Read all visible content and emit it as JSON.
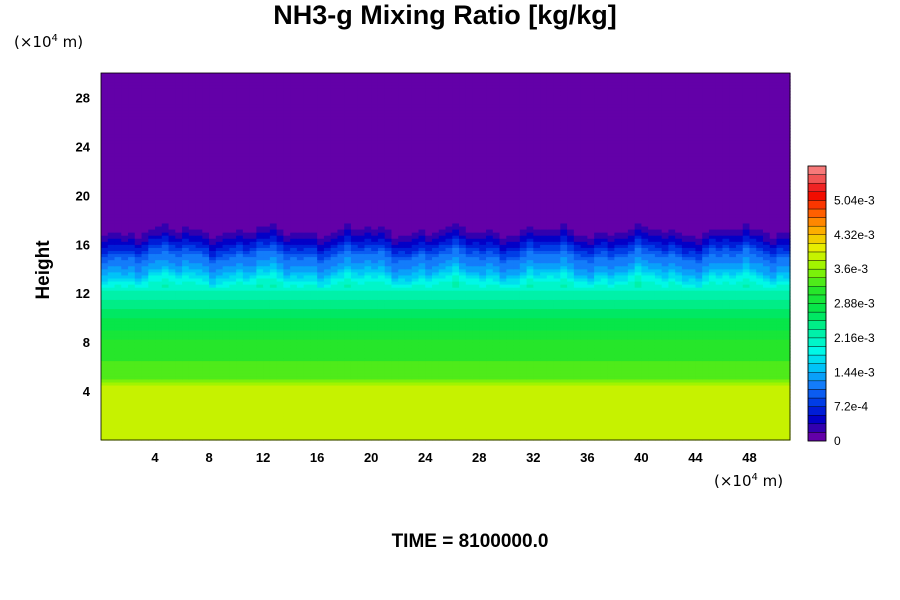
{
  "chart_data": {
    "type": "heatmap",
    "title": "NH3-g Mixing Ratio [kg/kg]",
    "ylabel": "Height",
    "y_unit": "(×10⁴ m)",
    "x_unit": "(×10⁴ m)",
    "y_unit_base": "(×10",
    "y_unit_exp": "4",
    "y_unit_tail": " m)",
    "x_unit_base": "(×10",
    "x_unit_exp": "4",
    "x_unit_tail": " m)",
    "xlim": [
      0,
      51
    ],
    "ylim": [
      0,
      30
    ],
    "x_ticks": [
      "4",
      "8",
      "12",
      "16",
      "20",
      "24",
      "28",
      "32",
      "36",
      "40",
      "44",
      "48"
    ],
    "y_ticks": [
      "4",
      "8",
      "12",
      "16",
      "20",
      "24",
      "28"
    ],
    "colorbar": {
      "min": 0,
      "max": 0.00576,
      "ticks": [
        "0",
        "7.2e-4",
        "1.44e-3",
        "2.16e-3",
        "2.88e-3",
        "3.6e-3",
        "4.32e-3",
        "5.04e-3"
      ]
    },
    "vertical_profile": [
      {
        "height": 0,
        "value": 0.00385
      },
      {
        "height": 4.5,
        "value": 0.00385
      },
      {
        "height": 5.0,
        "value": 0.00338
      },
      {
        "height": 8.0,
        "value": 0.0031
      },
      {
        "height": 10.0,
        "value": 0.0027
      },
      {
        "height": 12.0,
        "value": 0.00225
      },
      {
        "height": 13.0,
        "value": 0.0019
      },
      {
        "height": 14.0,
        "value": 0.00135
      },
      {
        "height": 15.0,
        "value": 0.0011
      },
      {
        "height": 16.0,
        "value": 0.0006
      },
      {
        "height": 17.0,
        "value": 0.0002
      },
      {
        "height": 18.0,
        "value": 3e-05
      },
      {
        "height": 30.0,
        "value": 0.0
      }
    ],
    "time_label": "TIME = 8100000.0"
  }
}
